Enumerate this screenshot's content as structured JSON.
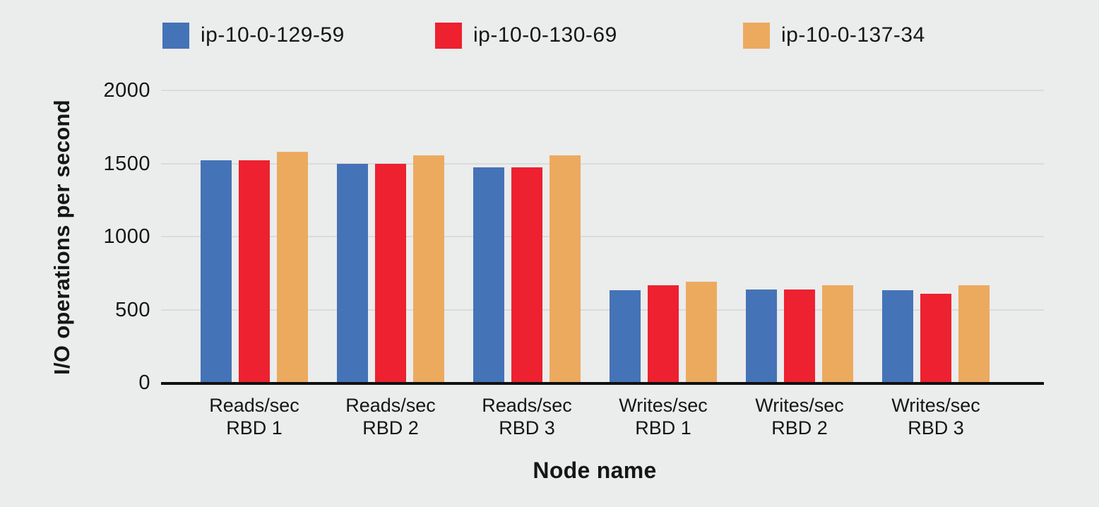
{
  "colors": {
    "background": "#ebecec",
    "gridline": "#dadbdb",
    "axis_line": "#101010",
    "text": "#161616",
    "series_blue": "#4573b7",
    "series_red": "#ed212f",
    "series_orange": "#ecaa5f"
  },
  "legend": {
    "items": [
      {
        "label": "ip-10-0-129-59",
        "color": "#4573b7"
      },
      {
        "label": "ip-10-0-130-69",
        "color": "#ed212f"
      },
      {
        "label": "ip-10-0-137-34",
        "color": "#ecaa5f"
      }
    ]
  },
  "chart_data": {
    "type": "bar",
    "title": "",
    "xlabel": "Node name",
    "ylabel": "I/O operations per second",
    "ylim": [
      0,
      2000
    ],
    "yticks": [
      0,
      500,
      1000,
      1500,
      2000
    ],
    "grid": true,
    "legend_position": "top",
    "categories": [
      {
        "line1": "Reads/sec",
        "line2": "RBD 1"
      },
      {
        "line1": "Reads/sec",
        "line2": "RBD 2"
      },
      {
        "line1": "Reads/sec",
        "line2": "RBD 3"
      },
      {
        "line1": "Writes/sec",
        "line2": "RBD 1"
      },
      {
        "line1": "Writes/sec",
        "line2": "RBD 2"
      },
      {
        "line1": "Writes/sec",
        "line2": "RBD 3"
      }
    ],
    "series": [
      {
        "name": "ip-10-0-129-59",
        "color": "#4573b7",
        "values": [
          1520,
          1500,
          1475,
          635,
          640,
          635
        ]
      },
      {
        "name": "ip-10-0-130-69",
        "color": "#ed212f",
        "values": [
          1520,
          1500,
          1475,
          665,
          640,
          610
        ]
      },
      {
        "name": "ip-10-0-137-34",
        "color": "#ecaa5f",
        "values": [
          1580,
          1555,
          1555,
          690,
          665,
          665
        ]
      }
    ]
  }
}
